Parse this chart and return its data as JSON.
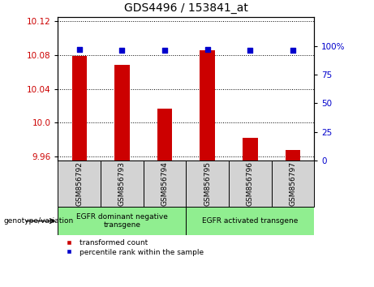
{
  "title": "GDS4496 / 153841_at",
  "categories": [
    "GSM856792",
    "GSM856793",
    "GSM856794",
    "GSM856795",
    "GSM856796",
    "GSM856797"
  ],
  "bar_values": [
    10.079,
    10.069,
    10.017,
    10.086,
    9.982,
    9.968
  ],
  "percentile_values": [
    97,
    96,
    96,
    97,
    96,
    96
  ],
  "bar_color": "#cc0000",
  "percentile_color": "#0000cc",
  "ylim_left": [
    9.955,
    10.125
  ],
  "ylim_right": [
    0,
    125
  ],
  "yticks_left": [
    9.96,
    10.0,
    10.04,
    10.08,
    10.12
  ],
  "yticks_right": [
    0,
    25,
    50,
    75,
    100
  ],
  "groups": [
    {
      "label": "EGFR dominant negative\ntransgene",
      "indices": [
        0,
        2
      ],
      "color": "#90ee90"
    },
    {
      "label": "EGFR activated transgene",
      "indices": [
        3,
        5
      ],
      "color": "#90ee90"
    }
  ],
  "group_label": "genotype/variation",
  "legend_items": [
    {
      "label": "transformed count",
      "color": "#cc0000"
    },
    {
      "label": "percentile rank within the sample",
      "color": "#0000cc"
    }
  ],
  "bar_baseline": 9.955,
  "sample_box_color": "#d3d3d3",
  "tick_label_color_left": "#cc0000",
  "tick_label_color_right": "#0000cc"
}
